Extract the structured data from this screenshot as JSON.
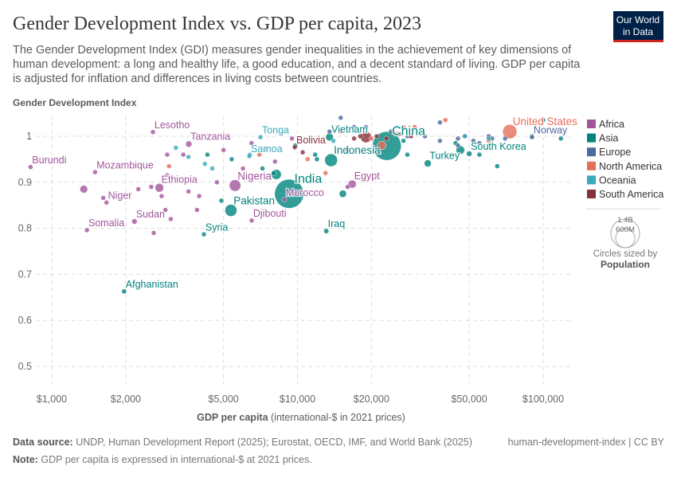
{
  "header": {
    "title": "Gender Development Index vs. GDP per capita, 2023",
    "subtitle_lines": [
      "The Gender Development Index (GDI) measures gender inequalities in the achievement of key dimensions of",
      "human development: a long and healthy life, a good education, and a decent standard of living. GDP per capita",
      "is adjusted for inflation and differences in living costs between countries."
    ],
    "logo_line1": "Our World",
    "logo_line2": "in Data"
  },
  "chart_data": {
    "type": "scatter",
    "title": "Gender Development Index vs. GDP per capita, 2023",
    "ylabel": "Gender Development Index",
    "xlabel_bold": "GDP per capita",
    "xlabel_rest": " (international-$ in 2021 prices)",
    "x_scale": "log",
    "xlim": [
      800,
      130000
    ],
    "ylim": [
      0.46,
      1.045
    ],
    "grid": true,
    "x_ticks": [
      {
        "v": 1000,
        "label": "$1,000"
      },
      {
        "v": 2000,
        "label": "$2,000"
      },
      {
        "v": 5000,
        "label": "$5,000"
      },
      {
        "v": 10000,
        "label": "$10,000"
      },
      {
        "v": 20000,
        "label": "$20,000"
      },
      {
        "v": 50000,
        "label": "$50,000"
      },
      {
        "v": 100000,
        "label": "$100,000"
      }
    ],
    "y_ticks": [
      {
        "v": 0.5,
        "label": "0.5"
      },
      {
        "v": 0.6,
        "label": "0.6"
      },
      {
        "v": 0.7,
        "label": "0.7"
      },
      {
        "v": 0.8,
        "label": "0.8"
      },
      {
        "v": 0.9,
        "label": "0.9"
      },
      {
        "v": 1,
        "label": "1"
      }
    ],
    "legend_placement": "right",
    "regions": [
      {
        "name": "Africa",
        "color": "#a2559c"
      },
      {
        "name": "Asia",
        "color": "#00847e"
      },
      {
        "name": "Europe",
        "color": "#4c6a9c"
      },
      {
        "name": "North America",
        "color": "#e56e5a"
      },
      {
        "name": "Oceania",
        "color": "#38aaba"
      },
      {
        "name": "South America",
        "color": "#883039"
      }
    ],
    "size_legend": {
      "title": "Circles sized by",
      "variable": "Population",
      "large": "1.4B",
      "small": "600M"
    },
    "labeled_points": [
      {
        "label": "Burundi",
        "region": "Africa",
        "gdp": 820,
        "gdi": 0.933,
        "pop": 13
      },
      {
        "label": "Lesotho",
        "region": "Africa",
        "gdp": 2580,
        "gdi": 1.009,
        "pop": 2.3
      },
      {
        "label": "Mozambique",
        "region": "Africa",
        "gdp": 1500,
        "gdi": 0.922,
        "pop": 33
      },
      {
        "label": "Tanzania",
        "region": "Africa",
        "gdp": 3610,
        "gdi": 0.983,
        "pop": 67
      },
      {
        "label": "Ethiopia",
        "region": "Africa",
        "gdp": 2740,
        "gdi": 0.888,
        "pop": 127
      },
      {
        "label": "Niger",
        "region": "Africa",
        "gdp": 1670,
        "gdi": 0.856,
        "pop": 27
      },
      {
        "label": "Sudan",
        "region": "Africa",
        "gdp": 2170,
        "gdi": 0.815,
        "pop": 50
      },
      {
        "label": "Somalia",
        "region": "Africa",
        "gdp": 1390,
        "gdi": 0.796,
        "pop": 18
      },
      {
        "label": "Tonga",
        "region": "Oceania",
        "gdp": 7070,
        "gdi": 0.998,
        "pop": 0.1
      },
      {
        "label": "Samoa",
        "region": "Oceania",
        "gdp": 6370,
        "gdi": 0.957,
        "pop": 0.2
      },
      {
        "label": "Nigeria",
        "region": "Africa",
        "gdp": 5570,
        "gdi": 0.893,
        "pop": 228
      },
      {
        "label": "Pakistan",
        "region": "Asia",
        "gdp": 5360,
        "gdi": 0.839,
        "pop": 247
      },
      {
        "label": "Djibouti",
        "region": "Africa",
        "gdp": 6510,
        "gdi": 0.817,
        "pop": 1.1
      },
      {
        "label": "Syria",
        "region": "Asia",
        "gdp": 4160,
        "gdi": 0.787,
        "pop": 23
      },
      {
        "label": "India",
        "region": "Asia",
        "gdp": 9250,
        "gdi": 0.875,
        "pop": 1438
      },
      {
        "label": "Morocco",
        "region": "Africa",
        "gdp": 8840,
        "gdi": 0.862,
        "pop": 38
      },
      {
        "label": "Bolivia",
        "region": "South America",
        "gdp": 9750,
        "gdi": 0.976,
        "pop": 12
      },
      {
        "label": "Vietnam",
        "region": "Asia",
        "gdp": 13500,
        "gdi": 0.998,
        "pop": 100
      },
      {
        "label": "Indonesia",
        "region": "Asia",
        "gdp": 13700,
        "gdi": 0.948,
        "pop": 279
      },
      {
        "label": "Iraq",
        "region": "Asia",
        "gdp": 13100,
        "gdi": 0.794,
        "pop": 45
      },
      {
        "label": "Egypt",
        "region": "Africa",
        "gdp": 16700,
        "gdi": 0.896,
        "pop": 113
      },
      {
        "label": "China",
        "region": "Asia",
        "gdp": 23100,
        "gdi": 0.979,
        "pop": 1410
      },
      {
        "label": "Turkey",
        "region": "Asia",
        "gdp": 33900,
        "gdi": 0.941,
        "pop": 85
      },
      {
        "label": "South Korea",
        "region": "Asia",
        "gdp": 50000,
        "gdi": 0.962,
        "pop": 52
      },
      {
        "label": "United States",
        "region": "North America",
        "gdp": 73100,
        "gdi": 1.01,
        "pop": 343
      },
      {
        "label": "Norway",
        "region": "Europe",
        "gdp": 90100,
        "gdi": 0.998,
        "pop": 5.5
      },
      {
        "label": "Afghanistan",
        "region": "Asia",
        "gdp": 1970,
        "gdi": 0.663,
        "pop": 42
      }
    ],
    "other_points": [
      [
        "Africa",
        1350,
        0.885,
        102
      ],
      [
        "Africa",
        2950,
        0.96,
        8
      ],
      [
        "Africa",
        3430,
        0.96,
        8
      ],
      [
        "Africa",
        2950,
        0.915,
        8
      ],
      [
        "Africa",
        2540,
        0.89,
        8
      ],
      [
        "Africa",
        2250,
        0.885,
        8
      ],
      [
        "Africa",
        2800,
        0.87,
        8
      ],
      [
        "Africa",
        3980,
        0.87,
        8
      ],
      [
        "Africa",
        1620,
        0.866,
        8
      ],
      [
        "Africa",
        2900,
        0.84,
        8
      ],
      [
        "Africa",
        3900,
        0.84,
        8
      ],
      [
        "Africa",
        3050,
        0.82,
        8
      ],
      [
        "Africa",
        2600,
        0.79,
        8
      ],
      [
        "Africa",
        3600,
        0.88,
        8
      ],
      [
        "Africa",
        4700,
        0.9,
        8
      ],
      [
        "Africa",
        6000,
        0.93,
        8
      ],
      [
        "Africa",
        9500,
        0.995,
        8
      ],
      [
        "Africa",
        7400,
        0.97,
        8
      ],
      [
        "Africa",
        16000,
        0.89,
        30
      ],
      [
        "Africa",
        6500,
        0.985,
        30
      ],
      [
        "Africa",
        8100,
        0.945,
        8
      ],
      [
        "Africa",
        5000,
        0.97,
        8
      ],
      [
        "Asia",
        8200,
        0.917,
        173
      ],
      [
        "Asia",
        15300,
        0.875,
        90
      ],
      [
        "Asia",
        46000,
        0.97,
        124
      ],
      [
        "Asia",
        5400,
        0.95,
        8
      ],
      [
        "Asia",
        4900,
        0.86,
        8
      ],
      [
        "Asia",
        7200,
        0.93,
        8
      ],
      [
        "Asia",
        11800,
        0.96,
        8
      ],
      [
        "Asia",
        9800,
        0.98,
        30
      ],
      [
        "Asia",
        12000,
        0.95,
        8
      ],
      [
        "Asia",
        28000,
        0.96,
        8
      ],
      [
        "Asia",
        100000,
        1.035,
        5
      ],
      [
        "Asia",
        65000,
        0.935,
        8
      ],
      [
        "Asia",
        55000,
        0.96,
        5
      ],
      [
        "Asia",
        118000,
        0.995,
        5
      ],
      [
        "Asia",
        8000,
        0.92,
        8
      ],
      [
        "Asia",
        4300,
        0.96,
        8
      ],
      [
        "Asia",
        44000,
        0.985,
        8
      ],
      [
        "Asia",
        27000,
        0.99,
        8
      ],
      [
        "Europe",
        15000,
        1.04,
        8
      ],
      [
        "Europe",
        13500,
        1.01,
        8
      ],
      [
        "Europe",
        19000,
        1.02,
        8
      ],
      [
        "Europe",
        28000,
        1.0,
        8
      ],
      [
        "Europe",
        33000,
        1.0,
        8
      ],
      [
        "Europe",
        38000,
        0.99,
        8
      ],
      [
        "Europe",
        45000,
        0.995,
        8
      ],
      [
        "Europe",
        48000,
        1.0,
        8
      ],
      [
        "Europe",
        52000,
        0.99,
        30
      ],
      [
        "Europe",
        55000,
        0.985,
        30
      ],
      [
        "Europe",
        60000,
        1.0,
        30
      ],
      [
        "Europe",
        62000,
        0.995,
        8
      ],
      [
        "Europe",
        70000,
        0.995,
        8
      ],
      [
        "Europe",
        90000,
        1.0,
        8
      ],
      [
        "Europe",
        38000,
        1.03,
        8
      ],
      [
        "Europe",
        24000,
        1.01,
        8
      ],
      [
        "Europe",
        45000,
        0.98,
        8
      ],
      [
        "Europe",
        17000,
        1.02,
        8
      ],
      [
        "North America",
        22000,
        0.98,
        129
      ],
      [
        "North America",
        7000,
        0.96,
        8
      ],
      [
        "North America",
        13000,
        0.92,
        8
      ],
      [
        "North America",
        20000,
        0.995,
        8
      ],
      [
        "North America",
        27000,
        1.02,
        8
      ],
      [
        "North America",
        30000,
        1.02,
        8
      ],
      [
        "North America",
        40000,
        1.035,
        8
      ],
      [
        "North America",
        60000,
        0.99,
        8
      ],
      [
        "North America",
        3000,
        0.935,
        8
      ],
      [
        "North America",
        15000,
        1.01,
        8
      ],
      [
        "North America",
        25000,
        1.005,
        8
      ],
      [
        "North America",
        11000,
        0.95,
        8
      ],
      [
        "Oceania",
        3200,
        0.975,
        8
      ],
      [
        "Oceania",
        4200,
        0.94,
        8
      ],
      [
        "Oceania",
        4500,
        0.93,
        8
      ],
      [
        "Oceania",
        6400,
        0.96,
        8
      ],
      [
        "Oceania",
        14000,
        0.99,
        8
      ],
      [
        "Oceania",
        60000,
        0.995,
        8
      ],
      [
        "Oceania",
        48000,
        1.0,
        8
      ],
      [
        "Oceania",
        3600,
        0.955,
        8
      ],
      [
        "South America",
        19000,
        0.998,
        211
      ],
      [
        "South America",
        18000,
        1.0,
        30
      ],
      [
        "South America",
        17000,
        0.995,
        8
      ],
      [
        "South America",
        26000,
        1.005,
        8
      ],
      [
        "South America",
        23000,
        0.995,
        8
      ],
      [
        "South America",
        16000,
        0.97,
        8
      ],
      [
        "South America",
        10500,
        0.965,
        8
      ],
      [
        "South America",
        21000,
        1.0,
        30
      ],
      [
        "South America",
        29000,
        1.0,
        8
      ]
    ]
  },
  "footer": {
    "source_label": "Data source:",
    "source_text": " UNDP, Human Development Report (2025); Eurostat, OECD, IMF, and World Bank (2025)",
    "right_text": "human-development-index | CC BY",
    "note_label": "Note:",
    "note_text": " GDP per capita is expressed in international-$ at 2021 prices."
  }
}
